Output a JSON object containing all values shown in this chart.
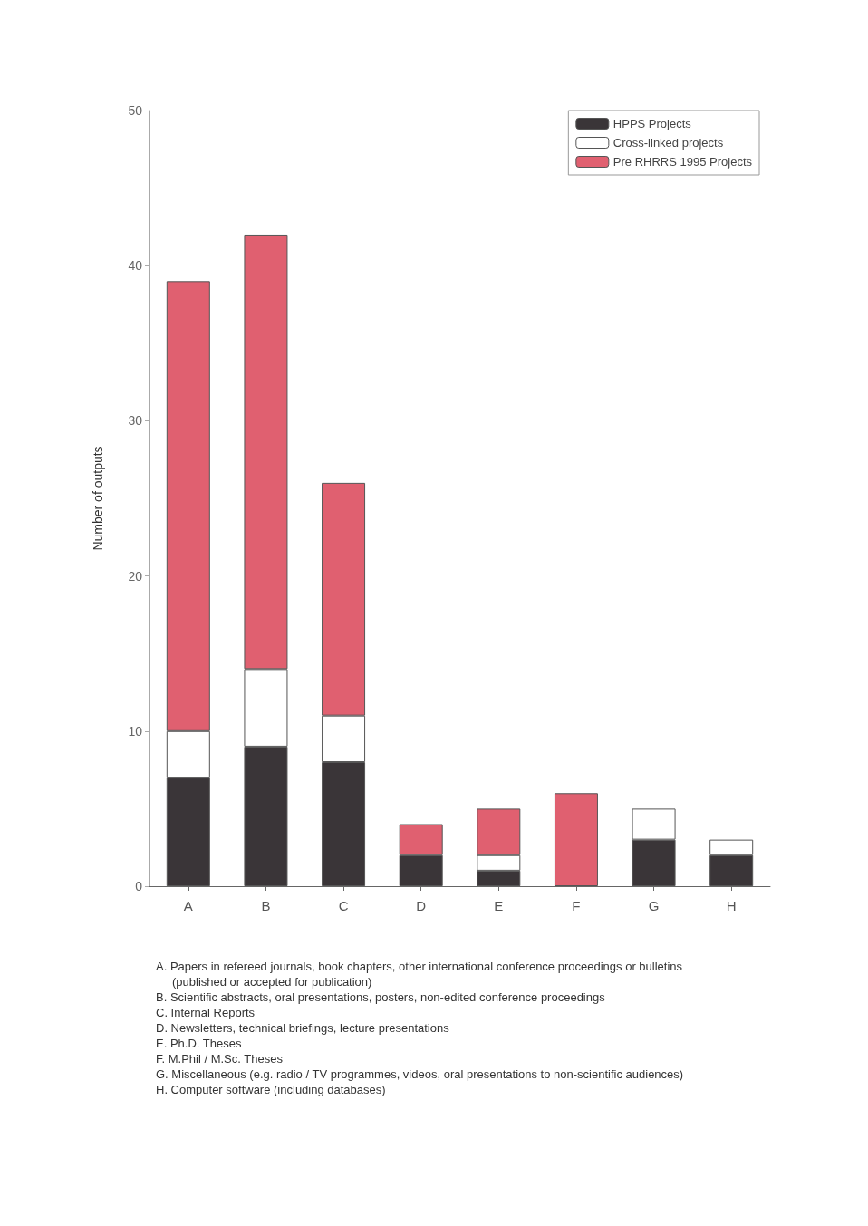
{
  "chart_data": {
    "type": "bar",
    "stacked": true,
    "ylabel": "Number of outputs",
    "categories": [
      "A",
      "B",
      "C",
      "D",
      "E",
      "F",
      "G",
      "H"
    ],
    "series": [
      {
        "name": "HPPS Projects",
        "color": "#3a3538",
        "values": [
          7,
          9,
          8,
          2,
          1,
          0,
          3,
          2
        ]
      },
      {
        "name": "Cross-linked projects",
        "color": "#ffffff",
        "values": [
          3,
          5,
          3,
          0,
          1,
          0,
          2,
          1
        ]
      },
      {
        "name": "Pre RHRRS 1995 Projects",
        "color": "#e06070",
        "values": [
          29,
          28,
          15,
          2,
          3,
          6,
          0,
          0
        ]
      }
    ],
    "ylim": [
      0,
      50
    ],
    "yticks": [
      0,
      10,
      20,
      30,
      40,
      50
    ],
    "grid": false,
    "legend": "top right",
    "annotations": [
      "A. Papers in refereed journals, book chapters, other international conference proceedings or bulletins (published or accepted for publication)",
      "B. Scientific abstracts, oral presentations, posters, non-edited conference proceedings",
      "C. Internal Reports",
      "D. Newsletters, technical briefings, lecture presentations",
      "E. Ph.D. Theses",
      "F. M.Phil / M.Sc. Theses",
      "G. Miscellaneous (e.g. radio / TV programmes, videos, oral presentations to non-scientific audiences)",
      "H. Computer software (including databases)"
    ]
  }
}
